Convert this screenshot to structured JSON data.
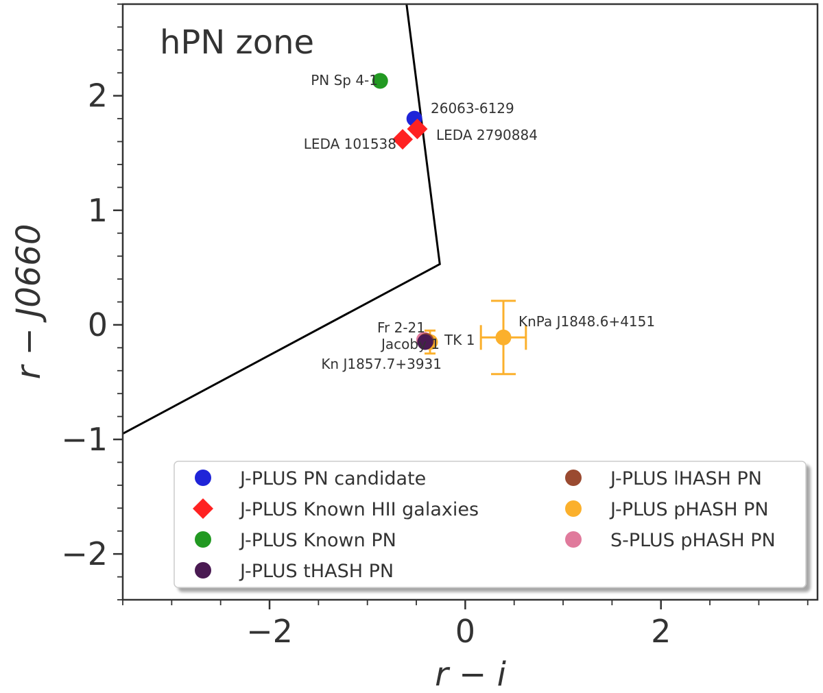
{
  "chart_data": {
    "type": "scatter",
    "title": "",
    "xlabel": "r − i",
    "ylabel": "r − J0660",
    "xlim": [
      -3.5,
      3.6
    ],
    "ylim": [
      -2.4,
      2.8
    ],
    "x_ticks": [
      {
        "value": -2,
        "label": "−2"
      },
      {
        "value": 0,
        "label": "0"
      },
      {
        "value": 2,
        "label": "2"
      }
    ],
    "y_ticks": [
      {
        "value": -2,
        "label": "−2"
      },
      {
        "value": -1,
        "label": "−1"
      },
      {
        "value": 0,
        "label": "0"
      },
      {
        "value": 1,
        "label": "1"
      },
      {
        "value": 2,
        "label": "2"
      }
    ],
    "grid": false,
    "zone_label": "hPN zone",
    "boundary_line": [
      {
        "x": -3.5,
        "y": -0.95
      },
      {
        "x": -0.26,
        "y": 0.53
      },
      {
        "x": -0.6,
        "y": 2.8
      }
    ],
    "legend": {
      "placement": "lower-right",
      "entries": [
        {
          "label": "J-PLUS PN candidate",
          "color": "#1f24d8",
          "marker": "circle"
        },
        {
          "label": "J-PLUS Known HII galaxies",
          "color": "#ff2222",
          "marker": "diamond"
        },
        {
          "label": "J-PLUS Known PN",
          "color": "#229922",
          "marker": "circle"
        },
        {
          "label": "J-PLUS tHASH PN",
          "color": "#4a1a52",
          "marker": "circle"
        },
        {
          "label": "J-PLUS lHASH PN",
          "color": "#9a4a30",
          "marker": "circle"
        },
        {
          "label": "J-PLUS pHASH PN",
          "color": "#fbb02c",
          "marker": "circle"
        },
        {
          "label": "S-PLUS pHASH PN",
          "color": "#e07a9c",
          "marker": "circle"
        }
      ]
    },
    "series": [
      {
        "category": 0,
        "points": [
          {
            "x": -0.52,
            "y": 1.8,
            "label": "26063-6129"
          }
        ]
      },
      {
        "category": 1,
        "points": [
          {
            "x": -0.64,
            "y": 1.62,
            "label": "LEDA 101538"
          },
          {
            "x": -0.49,
            "y": 1.71,
            "label": "LEDA 2790884"
          }
        ]
      },
      {
        "category": 2,
        "points": [
          {
            "x": -0.87,
            "y": 2.13,
            "label": "PN Sp 4-1"
          }
        ]
      },
      {
        "category": 3,
        "points": [
          {
            "x": -0.41,
            "y": -0.15,
            "label": "Jacoby 1"
          }
        ]
      },
      {
        "category": 4,
        "points": [
          {
            "x": -0.4,
            "y": -0.14,
            "label": "Kn J1857.7+3931"
          }
        ]
      },
      {
        "category": 5,
        "points": [
          {
            "x": 0.39,
            "y": -0.11,
            "label": "KnPa J1848.6+4151",
            "xerr": 0.23,
            "yerr": 0.32
          },
          {
            "x": -0.36,
            "y": -0.15,
            "label": "TK 1",
            "yerr": 0.1
          }
        ]
      },
      {
        "category": 6,
        "points": [
          {
            "x": -0.42,
            "y": -0.13,
            "label": "Fr 2-21"
          }
        ]
      }
    ]
  }
}
